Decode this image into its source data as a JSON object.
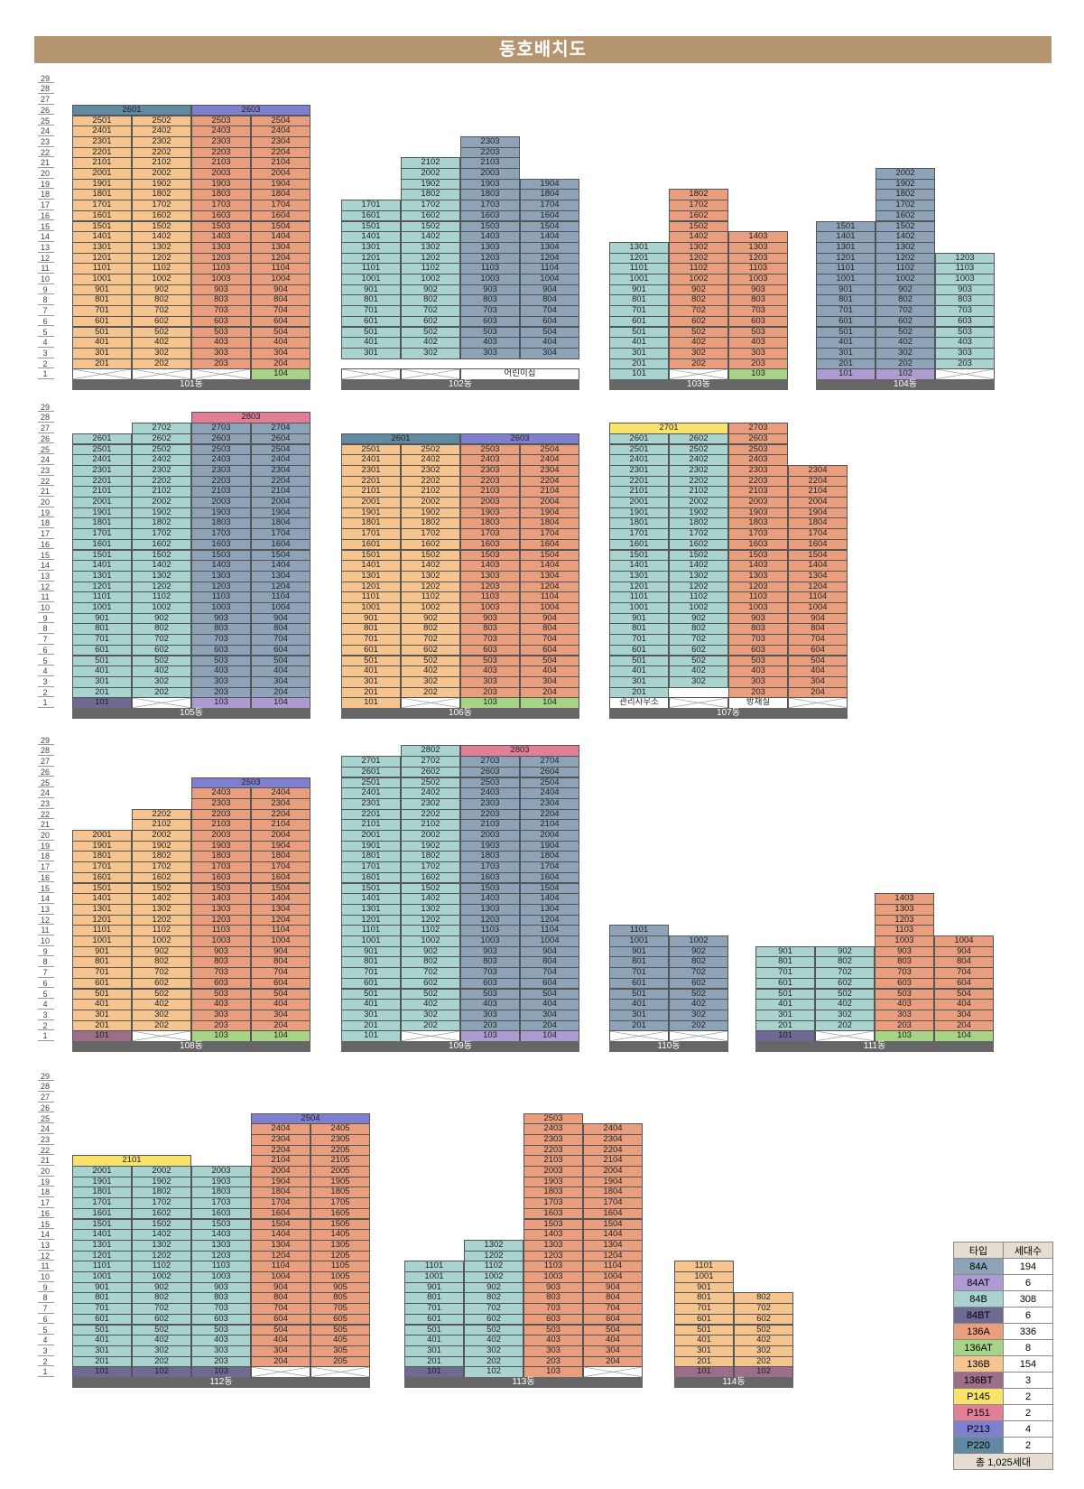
{
  "title": "동호배치도",
  "colors": {
    "84A": "#8ea3b8",
    "84AT": "#ad9bd1",
    "84B": "#a8d3cf",
    "84BT": "#6e6a93",
    "136A": "#e99e7e",
    "136AT": "#a6d385",
    "136B": "#f6c48f",
    "136BT": "#9d6e8a",
    "P145": "#f8e36b",
    "P151": "#e07f97",
    "P213": "#7f7fcf",
    "P220": "#5f8aa2"
  },
  "legend": {
    "header": [
      "타입",
      "세대수"
    ],
    "rows": [
      [
        "84A",
        "194"
      ],
      [
        "84AT",
        "6"
      ],
      [
        "84B",
        "308"
      ],
      [
        "84BT",
        "6"
      ],
      [
        "136A",
        "336"
      ],
      [
        "136AT",
        "8"
      ],
      [
        "136B",
        "154"
      ],
      [
        "136BT",
        "3"
      ],
      [
        "P145",
        "2"
      ],
      [
        "P151",
        "2"
      ],
      [
        "P213",
        "4"
      ],
      [
        "P220",
        "2"
      ]
    ],
    "total": "총 1,025세대"
  },
  "buildings": [
    {
      "name": "101동",
      "cols": [
        {
          "type": "136B",
          "range": [
            2,
            25
          ],
          "top": [
            "2601",
            "P220",
            2,
            26
          ]
        },
        {
          "type": "136B",
          "range": [
            2,
            25
          ]
        },
        {
          "type": "136A",
          "range": [
            2,
            25
          ],
          "top": [
            "2603",
            "P213",
            2,
            26
          ]
        },
        {
          "type": "136A",
          "range": [
            2,
            25
          ]
        }
      ],
      "ground": [
        [
          null
        ],
        [
          null
        ],
        [
          null
        ],
        [
          "104",
          "136AT"
        ]
      ]
    },
    {
      "name": "102동",
      "cols": [
        {
          "type": "84B",
          "range": [
            3,
            17
          ]
        },
        {
          "type": "84B",
          "range": [
            3,
            21
          ]
        },
        {
          "type": "84A",
          "range": [
            3,
            23
          ]
        },
        {
          "type": "84A",
          "range": [
            3,
            19
          ]
        }
      ],
      "ground": [
        [
          null
        ],
        [
          null
        ],
        [
          "어린이집",
          "x",
          2,
          2
        ]
      ],
      "gap2": [
        [
          null
        ],
        [
          null
        ],
        [
          null
        ],
        [
          null
        ]
      ]
    },
    {
      "name": "103동",
      "cols": [
        {
          "type": "84B",
          "range": [
            2,
            13
          ]
        },
        {
          "type": "136A",
          "range": [
            2,
            18
          ]
        },
        {
          "type": "136A",
          "range": [
            2,
            14
          ]
        }
      ],
      "ground": [
        [
          "101",
          "84B"
        ],
        [
          null
        ],
        [
          "103",
          "136AT"
        ]
      ]
    },
    {
      "name": "104동",
      "cols": [
        {
          "type": "84A",
          "range": [
            2,
            15
          ]
        },
        {
          "type": "84A",
          "range": [
            2,
            20
          ]
        },
        {
          "type": "84B",
          "range": [
            2,
            12
          ]
        }
      ],
      "ground": [
        [
          "101",
          "84AT"
        ],
        [
          "102",
          "84AT"
        ],
        [
          null
        ]
      ]
    },
    {
      "name": "105동",
      "cols": [
        {
          "type": "84B",
          "range": [
            2,
            26
          ]
        },
        {
          "type": "84B",
          "range": [
            2,
            27
          ]
        },
        {
          "type": "84A",
          "range": [
            2,
            27
          ],
          "top": [
            "2803",
            "P151",
            2,
            28
          ]
        },
        {
          "type": "84A",
          "range": [
            2,
            27
          ]
        }
      ],
      "ground": [
        [
          "101",
          "84BT"
        ],
        [
          null
        ],
        [
          "103",
          "84AT"
        ],
        [
          "104",
          "84AT"
        ]
      ]
    },
    {
      "name": "106동",
      "cols": [
        {
          "type": "136B",
          "range": [
            2,
            25
          ],
          "top": [
            "2601",
            "P220",
            2,
            26
          ]
        },
        {
          "type": "136B",
          "range": [
            2,
            25
          ]
        },
        {
          "type": "136A",
          "range": [
            2,
            25
          ],
          "top": [
            "2603",
            "P213",
            2,
            26
          ]
        },
        {
          "type": "136A",
          "range": [
            2,
            25
          ]
        }
      ],
      "ground": [
        [
          "101",
          "136B"
        ],
        [
          null
        ],
        [
          "103",
          "136AT"
        ],
        [
          "104",
          "136AT"
        ]
      ]
    },
    {
      "name": "107동",
      "cols": [
        {
          "type": "84B",
          "range": [
            2,
            26
          ],
          "top": [
            "2701",
            "P145",
            2,
            27
          ]
        },
        {
          "type": "84B",
          "range": [
            3,
            26
          ]
        },
        {
          "type": "136A",
          "range": [
            2,
            27
          ]
        },
        {
          "type": "136A",
          "range": [
            2,
            23
          ]
        }
      ],
      "ground": [
        [
          "관리사무소",
          "x"
        ],
        [
          null
        ],
        [
          "방재실",
          "x"
        ],
        [
          null
        ]
      ]
    },
    {
      "name": "108동",
      "cols": [
        {
          "type": "136B",
          "range": [
            2,
            20
          ]
        },
        {
          "type": "136B",
          "range": [
            2,
            22
          ]
        },
        {
          "type": "136A",
          "range": [
            2,
            24
          ],
          "top": [
            "2503",
            "P213",
            2,
            25
          ]
        },
        {
          "type": "136A",
          "range": [
            2,
            24
          ]
        }
      ],
      "ground": [
        [
          "101",
          "136BT"
        ],
        [
          null
        ],
        [
          "103",
          "136AT"
        ],
        [
          "104",
          "136AT"
        ]
      ]
    },
    {
      "name": "109동",
      "cols": [
        {
          "type": "84B",
          "range": [
            2,
            27
          ]
        },
        {
          "type": "84B",
          "range": [
            2,
            28
          ]
        },
        {
          "type": "84A",
          "range": [
            2,
            27
          ],
          "top": [
            "2803",
            "P151",
            2,
            28
          ]
        },
        {
          "type": "84A",
          "range": [
            2,
            27
          ]
        }
      ],
      "ground": [
        [
          "101",
          "84B"
        ],
        [
          null
        ],
        [
          "103",
          "84AT"
        ],
        [
          "104",
          "84AT"
        ]
      ]
    },
    {
      "name": "110동",
      "cols": [
        {
          "type": "84A",
          "range": [
            2,
            11
          ]
        },
        {
          "type": "84A",
          "range": [
            2,
            10
          ]
        }
      ],
      "ground": [
        [
          null
        ],
        [
          null
        ]
      ]
    },
    {
      "name": "111동",
      "cols": [
        {
          "type": "84B",
          "range": [
            2,
            9
          ]
        },
        {
          "type": "84B",
          "range": [
            2,
            9
          ]
        },
        {
          "type": "136A",
          "range": [
            2,
            14
          ]
        },
        {
          "type": "136A",
          "range": [
            2,
            10
          ]
        }
      ],
      "ground": [
        [
          "101",
          "84BT"
        ],
        [
          null
        ],
        [
          "103",
          "136AT"
        ],
        [
          "104",
          "136AT"
        ]
      ]
    },
    {
      "name": "112동",
      "cols": [
        {
          "type": "84B",
          "range": [
            2,
            20
          ],
          "top": [
            "2101",
            "P145",
            2,
            21
          ]
        },
        {
          "type": "84B",
          "range": [
            2,
            20
          ]
        },
        {
          "type": "84B",
          "range": [
            2,
            20
          ]
        },
        {
          "type": "136A",
          "range": [
            2,
            24
          ],
          "top": [
            "2504",
            "P213",
            2,
            25
          ]
        },
        {
          "type": "136A",
          "range": [
            2,
            24
          ]
        }
      ],
      "ground": [
        [
          "101",
          "84BT"
        ],
        [
          "102",
          "84BT"
        ],
        [
          "103",
          "84BT"
        ],
        [
          null
        ],
        [
          null
        ]
      ]
    },
    {
      "name": "113동",
      "cols": [
        {
          "type": "84B",
          "range": [
            2,
            11
          ]
        },
        {
          "type": "84B",
          "range": [
            2,
            13
          ]
        },
        {
          "type": "136A",
          "range": [
            2,
            25
          ]
        },
        {
          "type": "136A",
          "range": [
            2,
            24
          ]
        }
      ],
      "ground": [
        [
          "101",
          "84BT"
        ],
        [
          "102",
          "84B"
        ],
        [
          "103",
          "136A"
        ],
        [
          null
        ]
      ]
    },
    {
      "name": "114동",
      "cols": [
        {
          "type": "136B",
          "range": [
            2,
            11
          ]
        },
        {
          "type": "136B",
          "range": [
            2,
            8
          ]
        }
      ],
      "ground": [
        [
          "101",
          "136BT"
        ],
        [
          "102",
          "136BT"
        ]
      ]
    }
  ]
}
